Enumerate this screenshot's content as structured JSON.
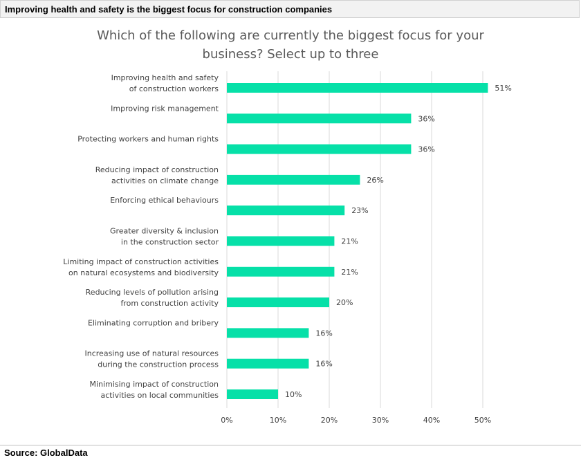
{
  "header": {
    "title": "Improving health and safety is the biggest focus for construction companies"
  },
  "footer": {
    "source": "Source: GlobalData"
  },
  "chart_data": {
    "type": "bar",
    "orientation": "horizontal",
    "title": "Which of the following are currently the biggest focus for your\nbusiness? Select up to three",
    "xlabel": "",
    "ylabel": "",
    "xlim": [
      0,
      55
    ],
    "x_ticks": [
      0,
      10,
      20,
      30,
      40,
      50
    ],
    "x_tick_labels": [
      "0%",
      "10%",
      "20%",
      "30%",
      "40%",
      "50%"
    ],
    "grid": "vertical",
    "bar_color": "#06e0a8",
    "categories": [
      [
        "Improving health and safety",
        "of construction workers"
      ],
      [
        "Improving risk management"
      ],
      [
        "Protecting workers and human rights"
      ],
      [
        "Reducing impact of construction",
        "activities on climate change"
      ],
      [
        "Enforcing ethical behaviours"
      ],
      [
        "Greater diversity & inclusion",
        "in the construction sector"
      ],
      [
        "Limiting impact of construction activities",
        "on natural ecosystems and biodiversity"
      ],
      [
        "Reducing levels of pollution arising",
        "from construction activity"
      ],
      [
        "Eliminating corruption and bribery"
      ],
      [
        "Increasing use of natural resources",
        "during the construction process"
      ],
      [
        "Minimising impact of construction",
        "activities on local communities"
      ]
    ],
    "values": [
      51,
      36,
      36,
      26,
      23,
      21,
      21,
      20,
      16,
      16,
      10
    ],
    "value_labels": [
      "51%",
      "36%",
      "36%",
      "26%",
      "23%",
      "21%",
      "21%",
      "20%",
      "16%",
      "16%",
      "10%"
    ]
  }
}
